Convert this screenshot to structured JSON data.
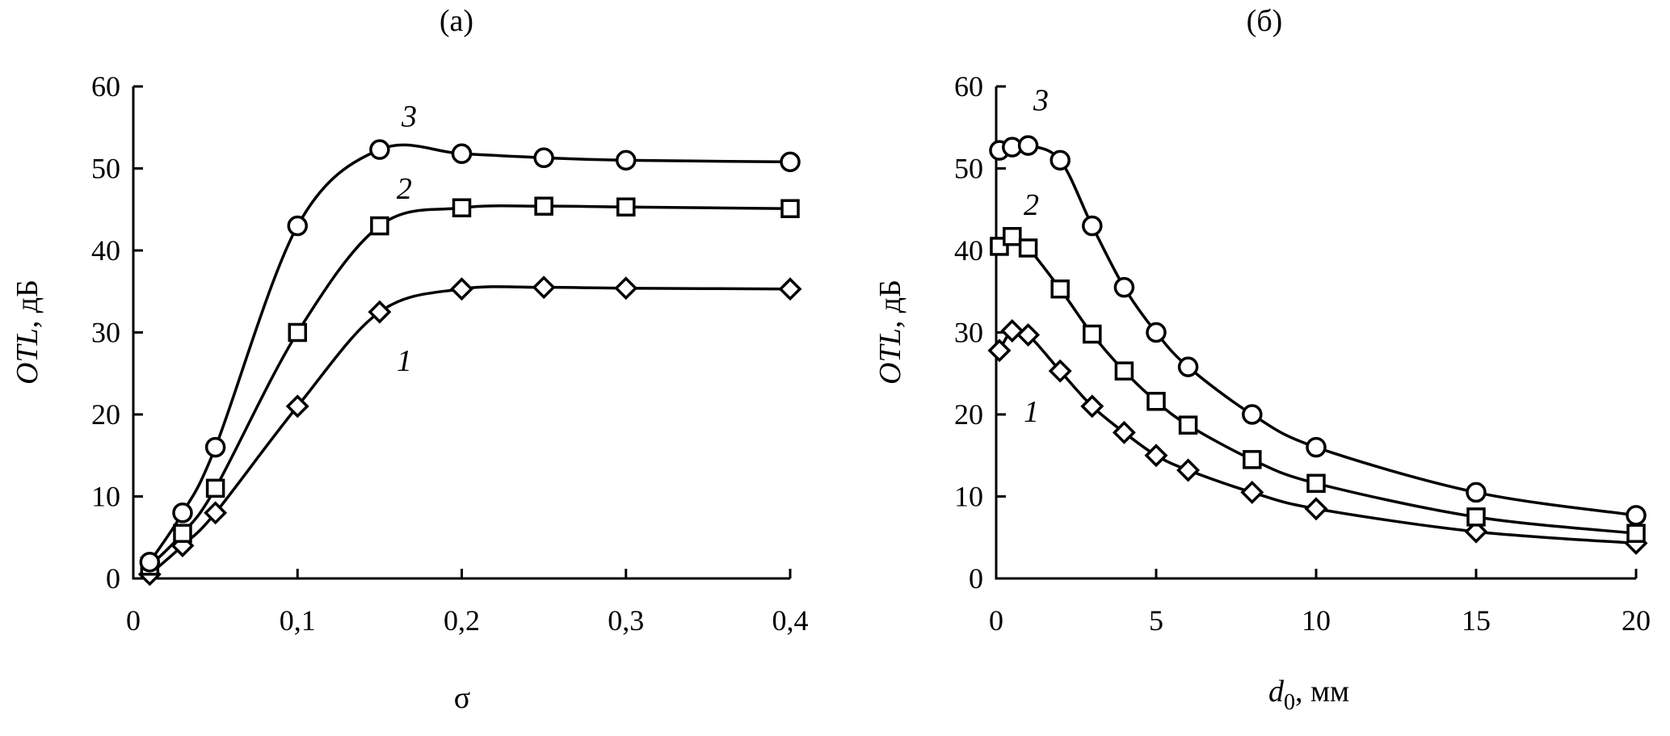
{
  "chart_data": [
    {
      "type": "line",
      "panel": "(a)",
      "title": "(a)",
      "xlabel": "σ",
      "ylabel_main": "OTL",
      "ylabel_unit": ", дБ",
      "xlim": [
        0,
        0.4
      ],
      "ylim": [
        0,
        60
      ],
      "xticks": [
        0,
        0.1,
        0.2,
        0.3,
        0.4
      ],
      "xtick_labels": [
        "0",
        "0,1",
        "0,2",
        "0,3",
        "0,4"
      ],
      "yticks": [
        0,
        10,
        20,
        30,
        40,
        50,
        60
      ],
      "ytick_labels": [
        "0",
        "10",
        "20",
        "30",
        "40",
        "50",
        "60"
      ],
      "grid": false,
      "series": [
        {
          "name": "1",
          "marker": "diamond",
          "x": [
            0.01,
            0.03,
            0.05,
            0.1,
            0.15,
            0.2,
            0.25,
            0.3,
            0.4
          ],
          "y": [
            0.5,
            4,
            8,
            21,
            32.5,
            35.3,
            35.5,
            35.4,
            35.3
          ]
        },
        {
          "name": "2",
          "marker": "square",
          "x": [
            0.01,
            0.03,
            0.05,
            0.1,
            0.15,
            0.2,
            0.25,
            0.3,
            0.4
          ],
          "y": [
            1.5,
            5.5,
            11,
            30,
            43,
            45.2,
            45.4,
            45.3,
            45.1
          ]
        },
        {
          "name": "3",
          "marker": "circle",
          "x": [
            0.01,
            0.03,
            0.05,
            0.1,
            0.15,
            0.2,
            0.25,
            0.3,
            0.4
          ],
          "y": [
            2,
            8,
            16,
            43,
            52.3,
            51.8,
            51.3,
            51,
            50.8
          ]
        }
      ],
      "curve_labels": [
        {
          "text": "1",
          "x": 0.165,
          "y": 26.5
        },
        {
          "text": "2",
          "x": 0.165,
          "y": 47.5
        },
        {
          "text": "3",
          "x": 0.168,
          "y": 56.3
        }
      ]
    },
    {
      "type": "line",
      "panel": "(б)",
      "title": "(б)",
      "xlabel_main": "d",
      "xlabel_sub": "0",
      "xlabel_unit": ", мм",
      "ylabel_main": "OTL",
      "ylabel_unit": ", дБ",
      "xlim": [
        0,
        20
      ],
      "ylim": [
        0,
        60
      ],
      "xticks": [
        0,
        5,
        10,
        15,
        20
      ],
      "xtick_labels": [
        "0",
        "5",
        "10",
        "15",
        "20"
      ],
      "yticks": [
        0,
        10,
        20,
        30,
        40,
        50,
        60
      ],
      "ytick_labels": [
        "0",
        "10",
        "20",
        "30",
        "40",
        "50",
        "60"
      ],
      "grid": false,
      "series": [
        {
          "name": "1",
          "marker": "diamond",
          "x": [
            0.1,
            0.5,
            1,
            2,
            3,
            4,
            5,
            6,
            8,
            10,
            15,
            20
          ],
          "y": [
            27.8,
            30.2,
            29.7,
            25.3,
            21,
            17.8,
            15,
            13.2,
            10.5,
            8.5,
            5.7,
            4.3
          ]
        },
        {
          "name": "2",
          "marker": "square",
          "x": [
            0.1,
            0.5,
            1,
            2,
            3,
            4,
            5,
            6,
            8,
            10,
            15,
            20
          ],
          "y": [
            40.5,
            41.7,
            40.3,
            35.3,
            29.8,
            25.3,
            21.6,
            18.7,
            14.5,
            11.6,
            7.5,
            5.5
          ]
        },
        {
          "name": "3",
          "marker": "circle",
          "x": [
            0.1,
            0.5,
            1,
            2,
            3,
            4,
            5,
            6,
            8,
            10,
            15,
            20
          ],
          "y": [
            52.2,
            52.6,
            52.8,
            51,
            43,
            35.5,
            30,
            25.8,
            20,
            16,
            10.5,
            7.7
          ]
        }
      ],
      "curve_labels": [
        {
          "text": "1",
          "x": 1.1,
          "y": 20.3
        },
        {
          "text": "2",
          "x": 1.1,
          "y": 45.5
        },
        {
          "text": "3",
          "x": 1.4,
          "y": 58.3
        }
      ]
    }
  ]
}
